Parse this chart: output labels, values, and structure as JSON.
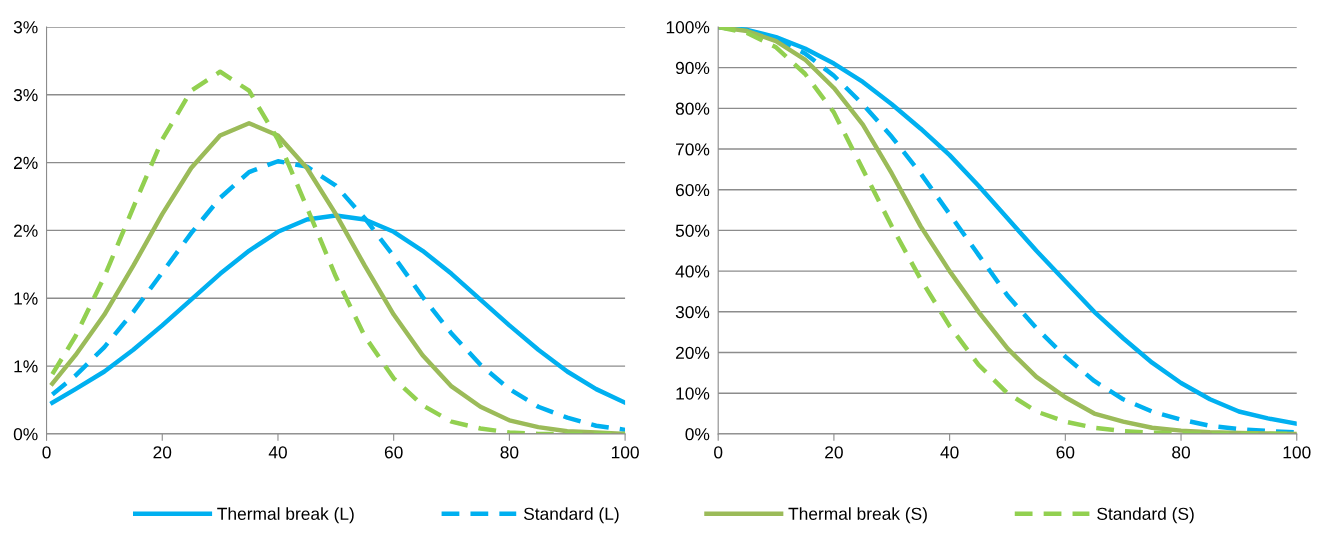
{
  "chart_data": [
    {
      "type": "line",
      "legend": "bottom",
      "grid": "y",
      "xlim": [
        0,
        100
      ],
      "xticks": [
        0,
        20,
        40,
        60,
        80,
        100
      ],
      "ylim": [
        0,
        3
      ],
      "yticks": [
        {
          "value": 0,
          "label": "0%"
        },
        {
          "value": 0.5,
          "label": "1%"
        },
        {
          "value": 1,
          "label": "1%"
        },
        {
          "value": 1.5,
          "label": "2%"
        },
        {
          "value": 2,
          "label": "2%"
        },
        {
          "value": 2.5,
          "label": "3%"
        },
        {
          "value": 3,
          "label": "3%"
        }
      ],
      "x": [
        1,
        5,
        10,
        15,
        20,
        25,
        30,
        35,
        40,
        45,
        50,
        55,
        60,
        65,
        70,
        75,
        80,
        85,
        90,
        95,
        100
      ],
      "series": [
        {
          "name": "Thermal break (L)",
          "color": "#00b0f0",
          "line_style": "solid",
          "values": [
            0.23,
            0.33,
            0.46,
            0.62,
            0.8,
            0.99,
            1.18,
            1.35,
            1.49,
            1.58,
            1.61,
            1.58,
            1.49,
            1.35,
            1.18,
            0.99,
            0.8,
            0.62,
            0.46,
            0.33,
            0.23
          ]
        },
        {
          "name": "Standard (L)",
          "color": "#00b0f0",
          "line_style": "dashed",
          "values": [
            0.29,
            0.43,
            0.64,
            0.9,
            1.19,
            1.48,
            1.74,
            1.93,
            2.01,
            1.97,
            1.83,
            1.59,
            1.31,
            1.01,
            0.74,
            0.51,
            0.33,
            0.2,
            0.12,
            0.06,
            0.03
          ]
        },
        {
          "name": "Thermal break (S)",
          "color": "#9bbb59",
          "line_style": "solid",
          "values": [
            0.37,
            0.58,
            0.88,
            1.24,
            1.62,
            1.96,
            2.2,
            2.29,
            2.2,
            1.96,
            1.62,
            1.24,
            0.88,
            0.58,
            0.35,
            0.2,
            0.1,
            0.05,
            0.02,
            0.01,
            0
          ]
        },
        {
          "name": "Standard (S)",
          "color": "#92d050",
          "line_style": "dashed",
          "values": [
            0.44,
            0.72,
            1.16,
            1.67,
            2.17,
            2.53,
            2.67,
            2.53,
            2.17,
            1.67,
            1.16,
            0.72,
            0.41,
            0.21,
            0.09,
            0.04,
            0.01,
            0,
            0,
            0,
            0
          ]
        }
      ]
    },
    {
      "type": "line",
      "grid": "y",
      "xlim": [
        0,
        100
      ],
      "xticks": [
        0,
        20,
        40,
        60,
        80,
        100
      ],
      "ylim": [
        0,
        100
      ],
      "yticks": [
        {
          "value": 0,
          "label": "0%"
        },
        {
          "value": 10,
          "label": "10%"
        },
        {
          "value": 20,
          "label": "20%"
        },
        {
          "value": 30,
          "label": "30%"
        },
        {
          "value": 40,
          "label": "40%"
        },
        {
          "value": 50,
          "label": "50%"
        },
        {
          "value": 60,
          "label": "60%"
        },
        {
          "value": 70,
          "label": "70%"
        },
        {
          "value": 80,
          "label": "80%"
        },
        {
          "value": 90,
          "label": "90%"
        },
        {
          "value": 100,
          "label": "100%"
        }
      ],
      "x": [
        0,
        5,
        10,
        15,
        20,
        25,
        30,
        35,
        40,
        45,
        50,
        55,
        60,
        65,
        70,
        75,
        80,
        85,
        90,
        95,
        100
      ],
      "series": [
        {
          "color": "#00b0f0",
          "line_style": "solid",
          "values": [
            100,
            99.3,
            97.5,
            94.7,
            91,
            86.5,
            81,
            75,
            68.5,
            61,
            53,
            45,
            37.5,
            30,
            23.5,
            17.5,
            12.5,
            8.5,
            5.5,
            3.8,
            2.5
          ]
        },
        {
          "color": "#00b0f0",
          "line_style": "dashed",
          "values": [
            100,
            99,
            97,
            93.5,
            88,
            81,
            73,
            64,
            54,
            44,
            34,
            26,
            19,
            13,
            8.5,
            5.5,
            3.5,
            2,
            1.2,
            0.7,
            0.4
          ]
        },
        {
          "color": "#9bbb59",
          "line_style": "solid",
          "values": [
            100,
            99,
            96.5,
            92,
            85,
            76,
            64,
            51,
            40,
            30,
            21,
            14,
            9,
            5,
            3,
            1.5,
            0.8,
            0.4,
            0.2,
            0.1,
            0
          ]
        },
        {
          "color": "#92d050",
          "line_style": "dashed",
          "values": [
            100,
            98.5,
            95,
            88.5,
            79,
            65,
            51,
            38,
            26.5,
            17,
            10,
            5.5,
            3,
            1.5,
            0.7,
            0.3,
            0.1,
            0,
            0,
            0,
            0
          ]
        }
      ]
    }
  ]
}
